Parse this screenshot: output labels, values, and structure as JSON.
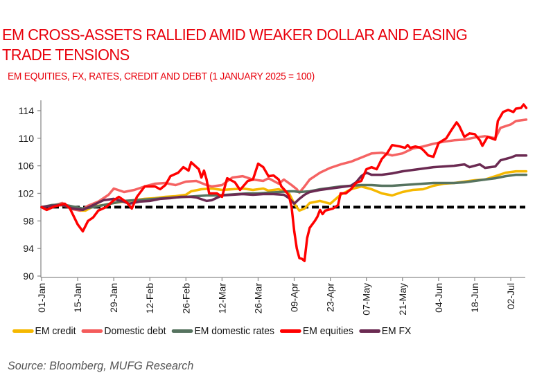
{
  "title_lines": [
    "EM CROSS-ASSETS RALLIED AMID WEAKER DOLLAR AND EASING",
    "TRADE TENSIONS"
  ],
  "subtitle": "EM EQUITIES, FX, RATES, CREDIT AND DEBT (1 JANUARY 2025 = 100)",
  "source": "Source: Bloomberg, MUFG Research",
  "chart_data": {
    "type": "line",
    "title": "EM CROSS-ASSETS RALLIED AMID WEAKER DOLLAR AND EASING TRADE TENSIONS",
    "subtitle": "EM EQUITIES, FX, RATES, CREDIT AND DEBT (1 JANUARY 2025 = 100)",
    "xlabel": "",
    "ylabel": "",
    "x_unit": "days since 01-Jan-2025",
    "xlim": [
      0,
      188
    ],
    "ylim": [
      90,
      115.5
    ],
    "yticks": [
      90,
      94,
      98,
      102,
      106,
      110,
      114
    ],
    "xtick_labels": [
      "01-Jan",
      "15-Jan",
      "29-Jan",
      "12-Feb",
      "26-Feb",
      "12-Mar",
      "26-Mar",
      "09-Apr",
      "23-Apr",
      "07-May",
      "21-May",
      "04-Jun",
      "18-Jun",
      "02-Jul"
    ],
    "xticks": [
      0,
      14,
      28,
      42,
      56,
      70,
      84,
      98,
      112,
      126,
      140,
      154,
      168,
      182
    ],
    "grid": false,
    "legend_position": "bottom",
    "reference_line": {
      "y": 100,
      "style": "dashed",
      "color": "#000000"
    },
    "series": [
      {
        "name": "EM credit",
        "color": "#f5b800",
        "x": [
          0,
          4,
          8,
          12,
          15,
          17,
          20,
          24,
          28,
          32,
          36,
          40,
          44,
          48,
          52,
          56,
          58,
          62,
          66,
          70,
          74,
          78,
          82,
          86,
          88,
          92,
          96,
          98,
          100,
          102,
          104,
          108,
          112,
          116,
          120,
          124,
          128,
          132,
          136,
          140,
          144,
          148,
          152,
          156,
          160,
          164,
          168,
          172,
          176,
          180,
          184,
          188
        ],
        "values": [
          100,
          100.2,
          100.3,
          99.8,
          99.5,
          99.5,
          100.1,
          100.3,
          100.6,
          100.8,
          101.0,
          101.2,
          101.3,
          101.5,
          101.6,
          101.8,
          102.3,
          102.6,
          102.7,
          102.5,
          102.6,
          102.7,
          102.5,
          102.7,
          102.4,
          102.6,
          102.0,
          100.5,
          99.5,
          99.8,
          100.6,
          100.9,
          100.5,
          101.8,
          102.6,
          103.0,
          102.6,
          102.0,
          101.7,
          102.2,
          102.5,
          102.6,
          103.1,
          103.4,
          103.5,
          103.7,
          103.9,
          104.0,
          104.5,
          105.0,
          105.2,
          105.2
        ]
      },
      {
        "name": "Domestic debt",
        "color": "#f45b5b",
        "x": [
          0,
          4,
          8,
          12,
          15,
          18,
          22,
          26,
          28,
          32,
          36,
          40,
          44,
          48,
          52,
          56,
          60,
          64,
          66,
          70,
          74,
          78,
          82,
          86,
          88,
          92,
          94,
          97,
          99,
          100,
          102,
          104,
          108,
          112,
          116,
          120,
          124,
          128,
          132,
          136,
          140,
          144,
          148,
          152,
          156,
          160,
          164,
          168,
          172,
          176,
          178,
          182,
          184,
          188
        ],
        "values": [
          100,
          100.2,
          100.6,
          99.7,
          99.5,
          100.2,
          100.8,
          101.8,
          102.7,
          102.2,
          102.5,
          103.0,
          103.4,
          103.5,
          103.2,
          103.7,
          103.8,
          103.2,
          103.0,
          103.2,
          104.3,
          104.5,
          104.0,
          103.8,
          104.2,
          103.4,
          104.0,
          103.2,
          102.6,
          102.1,
          103.0,
          104.0,
          105.0,
          105.7,
          106.2,
          106.6,
          107.2,
          107.8,
          107.9,
          107.5,
          107.8,
          108.5,
          108.8,
          109.2,
          109.5,
          109.7,
          109.8,
          110.1,
          110.3,
          110.0,
          111.5,
          112.0,
          112.5,
          112.7
        ]
      },
      {
        "name": "EM domestic rates",
        "color": "#56735f",
        "x": [
          0,
          4,
          8,
          12,
          16,
          20,
          24,
          28,
          32,
          36,
          40,
          44,
          48,
          52,
          56,
          60,
          64,
          68,
          72,
          76,
          80,
          84,
          88,
          92,
          96,
          98,
          100,
          104,
          108,
          112,
          116,
          120,
          124,
          128,
          132,
          136,
          140,
          144,
          148,
          152,
          156,
          160,
          164,
          168,
          172,
          176,
          180,
          184,
          188
        ],
        "values": [
          100,
          100.3,
          100.4,
          100.1,
          99.8,
          100.0,
          100.3,
          100.6,
          100.9,
          101.0,
          101.1,
          101.2,
          101.3,
          101.4,
          101.5,
          101.6,
          101.7,
          101.7,
          101.8,
          101.9,
          102.0,
          102.0,
          102.1,
          102.2,
          102.3,
          102.3,
          102.2,
          102.3,
          102.6,
          102.8,
          103.0,
          103.1,
          103.2,
          103.2,
          103.1,
          103.1,
          103.2,
          103.3,
          103.4,
          103.5,
          103.5,
          103.5,
          103.6,
          103.8,
          104.0,
          104.2,
          104.5,
          104.7,
          104.7
        ]
      },
      {
        "name": "EM equities",
        "color": "#ff0000",
        "x": [
          0,
          2,
          5,
          9,
          11,
          14,
          16,
          18,
          20,
          22,
          25,
          28,
          30,
          33,
          35,
          37,
          40,
          44,
          46,
          48,
          50,
          53,
          55,
          57,
          58,
          61,
          62,
          63,
          64,
          65,
          68,
          70,
          72,
          75,
          77,
          80,
          82,
          84,
          86,
          88,
          90,
          92,
          93,
          95,
          96,
          97,
          98,
          99,
          100,
          101,
          102,
          103,
          104,
          106,
          107,
          108,
          109,
          110,
          113,
          115,
          116,
          118,
          120,
          122,
          124,
          126,
          128,
          130,
          132,
          134,
          136,
          139,
          141,
          142,
          143,
          145,
          147,
          148,
          150,
          152,
          154,
          157,
          159,
          161,
          162,
          164,
          166,
          168,
          170,
          171,
          173,
          176,
          177,
          179,
          181,
          183,
          184,
          186,
          187,
          188
        ],
        "values": [
          100,
          99.6,
          100.1,
          100.5,
          99.8,
          97.5,
          96.5,
          98.0,
          98.5,
          99.5,
          100.0,
          101.0,
          101.5,
          100.7,
          99.8,
          101.5,
          103.0,
          103.0,
          102.6,
          103.2,
          104.5,
          105.0,
          105.8,
          105.3,
          106.5,
          105.5,
          104.3,
          105.3,
          104.0,
          102.0,
          102.0,
          101.5,
          104.2,
          103.6,
          102.5,
          103.8,
          104.0,
          106.3,
          105.8,
          104.5,
          104.6,
          104.0,
          103.0,
          102.2,
          101.6,
          100.0,
          96.5,
          94.0,
          92.6,
          92.5,
          92.2,
          95.5,
          97.0,
          98.0,
          98.6,
          99.6,
          99.0,
          99.5,
          99.8,
          100.3,
          102.0,
          102.0,
          102.6,
          103.5,
          103.8,
          105.5,
          105.8,
          105.5,
          107.0,
          107.8,
          109.0,
          108.8,
          108.6,
          109.0,
          108.6,
          108.8,
          108.6,
          108.3,
          107.5,
          107.3,
          109.3,
          110.0,
          111.2,
          112.3,
          111.8,
          110.2,
          110.7,
          110.6,
          109.7,
          108.9,
          110.2,
          109.8,
          112.5,
          113.8,
          114.1,
          113.8,
          114.3,
          114.4,
          114.9,
          114.4
        ]
      },
      {
        "name": "EM FX",
        "color": "#6b2a52",
        "x": [
          0,
          4,
          8,
          12,
          16,
          20,
          24,
          28,
          30,
          34,
          38,
          42,
          46,
          50,
          54,
          58,
          60,
          64,
          66,
          70,
          74,
          78,
          82,
          86,
          90,
          94,
          96,
          98,
          100,
          102,
          104,
          108,
          112,
          116,
          120,
          122,
          124,
          126,
          128,
          132,
          136,
          140,
          144,
          148,
          152,
          156,
          160,
          164,
          166,
          170,
          172,
          176,
          178,
          182,
          184,
          188
        ],
        "values": [
          100,
          100.2,
          100.3,
          99.8,
          99.6,
          100.3,
          101.0,
          101.2,
          101.0,
          100.5,
          100.8,
          100.9,
          101.2,
          101.3,
          101.5,
          101.5,
          101.4,
          100.9,
          101.0,
          101.7,
          101.8,
          101.9,
          101.8,
          101.9,
          101.9,
          101.8,
          101.3,
          100.5,
          101.2,
          101.8,
          102.2,
          102.5,
          102.7,
          102.9,
          103.1,
          103.6,
          104.5,
          105.0,
          104.7,
          104.7,
          104.9,
          105.2,
          105.4,
          105.6,
          105.8,
          105.9,
          106.0,
          106.2,
          105.8,
          106.2,
          105.7,
          105.9,
          106.8,
          107.2,
          107.5,
          107.5
        ]
      }
    ]
  }
}
